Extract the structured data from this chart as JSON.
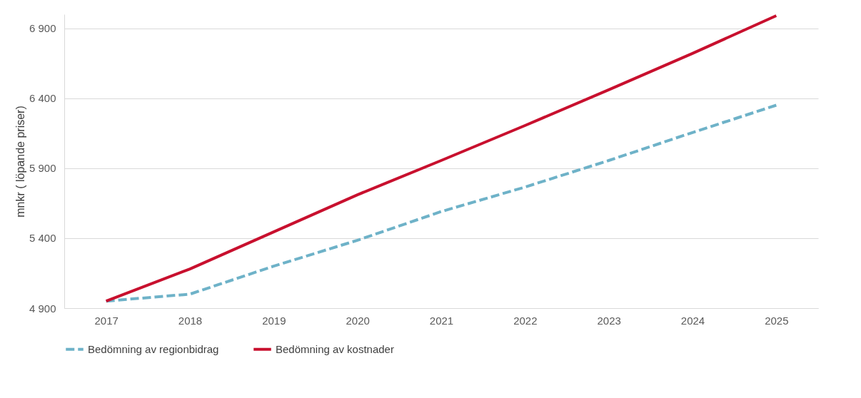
{
  "chart_data": {
    "type": "line",
    "ylabel": "mnkr ( löpande priser)",
    "categories": [
      "2017",
      "2018",
      "2019",
      "2020",
      "2021",
      "2022",
      "2023",
      "2024",
      "2025"
    ],
    "series": [
      {
        "name": "Bedömning av regionbidrag",
        "color": "#6eb2c8",
        "line_style": "dashed",
        "values": [
          4950,
          5000,
          5200,
          5385,
          5590,
          5765,
          5955,
          6155,
          6350
        ]
      },
      {
        "name": "Bedömning av kostnader",
        "color": "#c8102e",
        "line_style": "solid",
        "values": [
          4950,
          5180,
          5445,
          5710,
          5955,
          6205,
          6460,
          6720,
          6990
        ]
      }
    ],
    "ylim": [
      4900,
      7000
    ],
    "yticks": [
      {
        "value": 4900,
        "label": "4 900"
      },
      {
        "value": 5400,
        "label": "5 400"
      },
      {
        "value": 5900,
        "label": "5 900"
      },
      {
        "value": 6400,
        "label": "6 400"
      },
      {
        "value": 6900,
        "label": "6 900"
      }
    ],
    "grid": "y",
    "legend": "bottom",
    "marker": "none"
  }
}
